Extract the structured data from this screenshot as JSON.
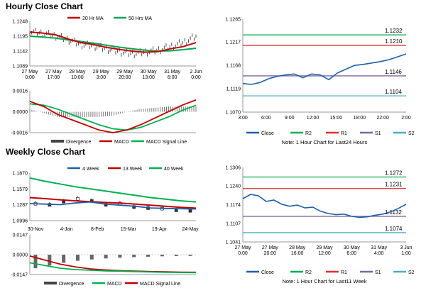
{
  "titles": {
    "hourly": "Hourly Close Chart",
    "weekly": "Weekly Close Chart"
  },
  "colors": {
    "ma20": "#c00000",
    "ma50": "#00a650",
    "green_line": "#00b050",
    "red_line": "#e03030",
    "purple_line": "#8064a2",
    "cyan_line": "#4bacc6",
    "close_blue": "#1f5fa8",
    "grid": "#bbbbbb"
  },
  "chart_data": [
    {
      "id": "hourly-price",
      "type": "line",
      "legend": [
        "20 Hr MA",
        "50 Hrs MA"
      ],
      "yticks": [
        "1.1248",
        "1.1195",
        "1.1142",
        "1.1089"
      ],
      "ylim": [
        1.1089,
        1.1248
      ],
      "xticks": [
        [
          "27 May",
          "0:00"
        ],
        [
          "27 May",
          "17:00"
        ],
        [
          "28 May",
          "10:00"
        ],
        [
          "29 May",
          "3:00"
        ],
        [
          "29 May",
          "20:00"
        ],
        [
          "30 May",
          "13:00"
        ],
        [
          "31 May",
          "6:00"
        ],
        [
          "2 Jun",
          "0:00"
        ]
      ],
      "series": [
        {
          "name": "20 Hr MA",
          "values": [
            1.121,
            1.1206,
            1.12,
            1.1185,
            1.1172,
            1.1165,
            1.1155,
            1.1148,
            1.1142,
            1.1138,
            1.114,
            1.115,
            1.1158,
            1.1172
          ]
        },
        {
          "name": "50 Hrs MA",
          "values": [
            1.1195,
            1.1192,
            1.1188,
            1.1182,
            1.1176,
            1.117,
            1.1163,
            1.1156,
            1.115,
            1.1145,
            1.1142,
            1.1143,
            1.1147,
            1.1152
          ]
        },
        {
          "name": "Price",
          "values": [
            1.1212,
            1.1205,
            1.1196,
            1.1183,
            1.1165,
            1.116,
            1.115,
            1.114,
            1.1132,
            1.1138,
            1.1145,
            1.1158,
            1.1172,
            1.1195
          ]
        }
      ]
    },
    {
      "id": "hourly-macd",
      "type": "line",
      "legend": [
        "Divergence",
        "MACD",
        "MACD Signal Line"
      ],
      "yticks": [
        "0.0016",
        "0.0000",
        "-0.0016"
      ],
      "ylim": [
        -0.0016,
        0.0016
      ],
      "series": [
        {
          "name": "MACD",
          "values": [
            0.0008,
            0.0004,
            -0.0002,
            -0.0006,
            -0.001,
            -0.0014,
            -0.0016,
            -0.0014,
            -0.001,
            -0.0005,
            0.0,
            0.0005,
            0.0009
          ]
        },
        {
          "name": "MACD Signal Line",
          "values": [
            0.0006,
            0.0005,
            0.0002,
            -0.0002,
            -0.0006,
            -0.001,
            -0.0013,
            -0.0014,
            -0.0012,
            -0.0008,
            -0.0004,
            0.0001,
            0.0005
          ]
        },
        {
          "name": "Divergence",
          "values": [
            0.0002,
            -0.0001,
            -0.0004,
            -0.0004,
            -0.0004,
            -0.0004,
            -0.0003,
            0.0,
            0.0002,
            0.0003,
            0.0004,
            0.0004,
            0.0004
          ]
        }
      ]
    },
    {
      "id": "hourly-pivot",
      "type": "line",
      "yticks": [
        "1.1265",
        "1.1217",
        "1.1168",
        "1.1119",
        "1.1070"
      ],
      "ylim": [
        1.107,
        1.1265
      ],
      "xticks": [
        "3:00",
        "6:00",
        "9:00",
        "12:00",
        "15:00",
        "18:00",
        "22:00",
        "2:00"
      ],
      "levels": {
        "R2": 1.1232,
        "R1": 1.121,
        "S1": 1.1146,
        "S2": 1.1104
      },
      "level_labels": {
        "R2": "1.1232",
        "R1": "1.1210",
        "S1": "1.1146",
        "S2": "1.1104"
      },
      "close": [
        1.113,
        1.1128,
        1.1132,
        1.114,
        1.1145,
        1.1148,
        1.115,
        1.1142,
        1.115,
        1.1148,
        1.1138,
        1.1152,
        1.116,
        1.1168,
        1.117,
        1.1173,
        1.1176,
        1.118,
        1.1186,
        1.1192
      ],
      "legend": [
        "Close",
        "R2",
        "R1",
        "S1",
        "S2"
      ],
      "note": "Note: 1 Hour Chart for Last24 Hours"
    },
    {
      "id": "weekly-price",
      "type": "line",
      "legend": [
        "4 Week",
        "13 Week",
        "40 Week"
      ],
      "yticks": [
        "1.1870",
        "1.1579",
        "1.1287",
        "1.0996"
      ],
      "ylim": [
        1.0996,
        1.187
      ],
      "xticks": [
        "30-Nov",
        "4-Jan",
        "8-Feb",
        "15-Mar",
        "19-Apr",
        "24-May"
      ],
      "series": [
        {
          "name": "4 Week",
          "values": [
            1.131,
            1.13,
            1.129,
            1.132,
            1.134,
            1.13,
            1.128,
            1.126,
            1.123,
            1.122,
            1.1215,
            1.121
          ]
        },
        {
          "name": "13 Week",
          "values": [
            1.142,
            1.14,
            1.138,
            1.136,
            1.1345,
            1.133,
            1.132,
            1.13,
            1.128,
            1.126,
            1.124,
            1.1225
          ]
        },
        {
          "name": "40 Week",
          "values": [
            1.178,
            1.172,
            1.167,
            1.162,
            1.158,
            1.154,
            1.15,
            1.146,
            1.142,
            1.139,
            1.136,
            1.134
          ]
        },
        {
          "name": "Price",
          "values": [
            1.132,
            1.13,
            1.136,
            1.141,
            1.137,
            1.13,
            1.132,
            1.126,
            1.124,
            1.123,
            1.12,
            1.119
          ]
        }
      ]
    },
    {
      "id": "weekly-macd",
      "type": "line",
      "legend": [
        "Divergence",
        "MACD",
        "MACD Signal Line"
      ],
      "yticks": [
        "0.0147",
        "0.0000",
        "-0.0147"
      ],
      "ylim": [
        -0.0147,
        0.0147
      ],
      "series": [
        {
          "name": "MACD",
          "values": [
            -0.006,
            -0.008,
            -0.01,
            -0.011,
            -0.0115,
            -0.012,
            -0.0122,
            -0.0125,
            -0.0128,
            -0.013,
            -0.0132,
            -0.0133
          ]
        },
        {
          "name": "MACD Signal Line",
          "values": [
            -0.001,
            -0.004,
            -0.007,
            -0.009,
            -0.0105,
            -0.0113,
            -0.0118,
            -0.0122,
            -0.0125,
            -0.0127,
            -0.0129,
            -0.013
          ]
        },
        {
          "name": "Divergence",
          "values": [
            -0.01,
            -0.008,
            -0.006,
            -0.0045,
            -0.0035,
            -0.0028,
            -0.0022,
            -0.0018,
            -0.0015,
            -0.0012,
            -0.001,
            -0.0009
          ]
        }
      ]
    },
    {
      "id": "weekly-pivot",
      "type": "line",
      "yticks": [
        "1.1306",
        "1.1240",
        "1.1174",
        "1.1107",
        "1.1041"
      ],
      "ylim": [
        1.1041,
        1.1306
      ],
      "xticks": [
        [
          "27 May",
          "0:00"
        ],
        [
          "27 May",
          "20:00"
        ],
        [
          "28 May",
          "16:00"
        ],
        [
          "29 May",
          "12:00"
        ],
        [
          "30 May",
          "8:00"
        ],
        [
          "31 May",
          "4:00"
        ],
        [
          "3 Jun",
          "1:00"
        ]
      ],
      "levels": {
        "R2": 1.1272,
        "R1": 1.1231,
        "S1": 1.1132,
        "S2": 1.1074
      },
      "level_labels": {
        "R2": "1.1272",
        "R1": "1.1231",
        "S1": "1.1132",
        "S2": "1.1074"
      },
      "close": [
        1.1195,
        1.121,
        1.1205,
        1.1185,
        1.119,
        1.1175,
        1.1168,
        1.1172,
        1.1162,
        1.1165,
        1.115,
        1.1142,
        1.1138,
        1.114,
        1.1132,
        1.1128,
        1.113,
        1.1136,
        1.114,
        1.1148,
        1.116,
        1.1175
      ],
      "legend": [
        "Close",
        "R2",
        "R1",
        "S1",
        "S2"
      ],
      "note": "Note: 1 Hour Chart for Last11 Week"
    }
  ]
}
